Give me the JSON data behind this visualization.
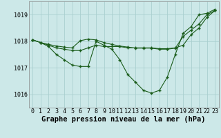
{
  "background_color": "#cce8e8",
  "grid_color": "#aacfcf",
  "line_color": "#1a5c1a",
  "marker_color": "#1a5c1a",
  "title": "Graphe pression niveau de la mer (hPa)",
  "xlabel_hours": [
    0,
    1,
    2,
    3,
    4,
    5,
    6,
    7,
    8,
    9,
    10,
    11,
    12,
    13,
    14,
    15,
    16,
    17,
    18,
    19,
    20,
    21,
    22,
    23
  ],
  "ylim": [
    1015.5,
    1019.5
  ],
  "yticks": [
    1016,
    1017,
    1018,
    1019
  ],
  "line1": [
    1018.05,
    1017.95,
    1017.85,
    1017.75,
    1017.7,
    1017.65,
    1017.65,
    1017.75,
    1017.85,
    1017.8,
    1017.8,
    1017.8,
    1017.75,
    1017.75,
    1017.75,
    1017.75,
    1017.72,
    1017.72,
    1017.75,
    1017.85,
    1018.25,
    1018.5,
    1018.9,
    1019.15
  ],
  "line2": [
    1018.05,
    1017.95,
    1017.8,
    1017.5,
    1017.3,
    1017.1,
    1017.05,
    1017.05,
    1018.0,
    1017.85,
    1017.7,
    1017.3,
    1016.75,
    1016.45,
    1016.15,
    1016.05,
    1016.15,
    1016.65,
    1017.5,
    1018.3,
    1018.55,
    1019.0,
    1019.05,
    1019.2
  ],
  "line3": [
    1018.05,
    1017.95,
    1017.88,
    1017.82,
    1017.78,
    1017.75,
    1018.02,
    1018.08,
    1018.05,
    1017.95,
    1017.88,
    1017.82,
    1017.78,
    1017.74,
    1017.74,
    1017.74,
    1017.7,
    1017.7,
    1017.74,
    1018.18,
    1018.42,
    1018.65,
    1019.0,
    1019.15
  ],
  "title_fontsize": 7.5,
  "tick_fontsize": 6
}
